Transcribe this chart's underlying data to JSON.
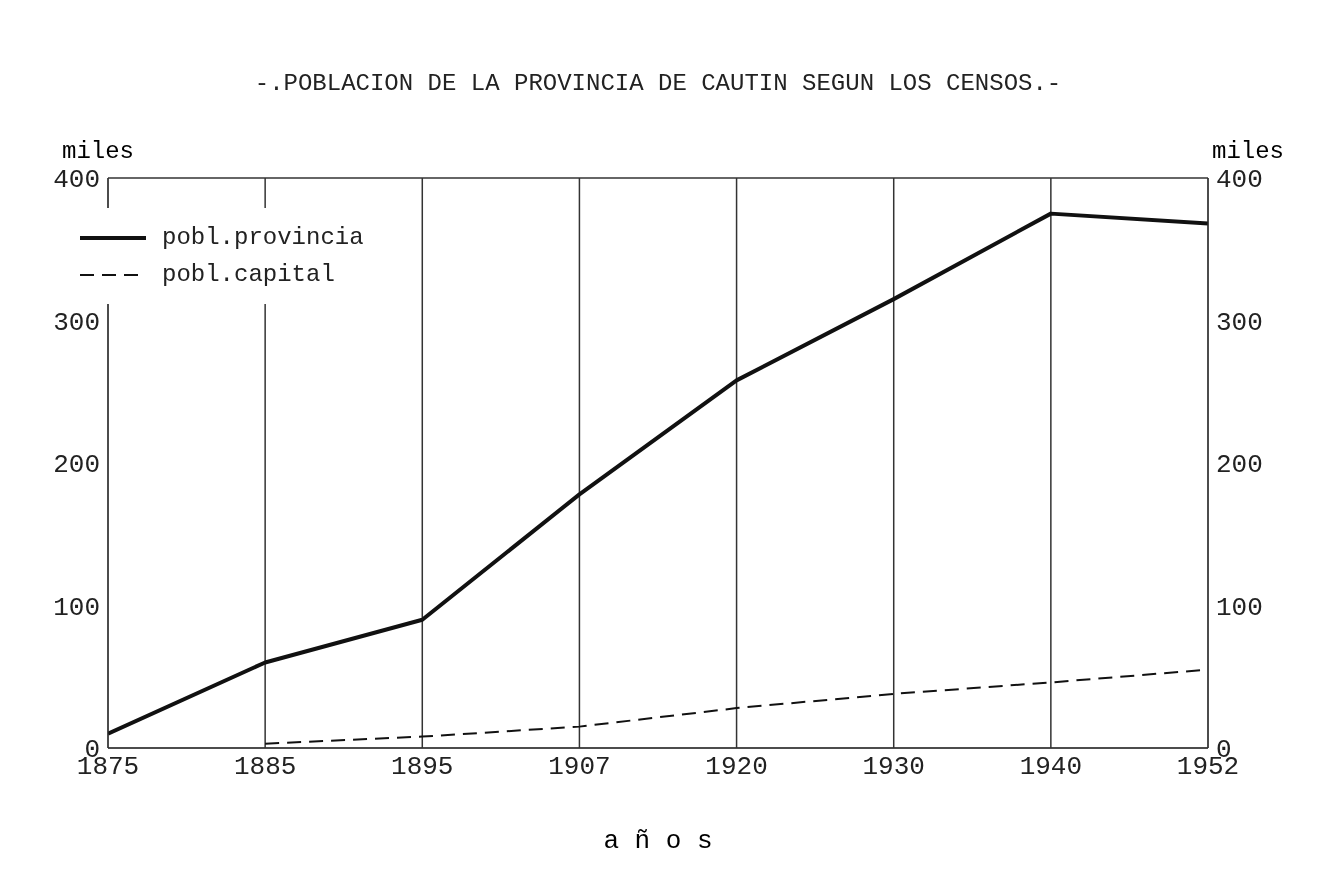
{
  "chart_data": {
    "type": "line",
    "title": "-.POBLACION DE LA PROVINCIA DE CAUTIN SEGUN LOS CENSOS.-",
    "xlabel": "a ñ o s",
    "ylabel": "miles",
    "y2label": "miles",
    "categories": [
      "1875",
      "1885",
      "1895",
      "1907",
      "1920",
      "1930",
      "1940",
      "1952"
    ],
    "series": [
      {
        "name": "pobl.provincia",
        "color": "#111111",
        "line_style": "solid",
        "values": [
          10,
          60,
          90,
          178,
          258,
          315,
          375,
          368
        ]
      },
      {
        "name": "pobl.capital",
        "color": "#111111",
        "line_style": "dashed",
        "values": [
          null,
          3,
          8,
          15,
          28,
          38,
          46,
          55
        ]
      }
    ],
    "ylim": [
      0,
      400
    ],
    "yticks": [
      0,
      100,
      200,
      300,
      400
    ],
    "y2lim": [
      0,
      400
    ],
    "y2ticks": [
      0,
      100,
      200,
      300,
      400
    ],
    "grid": true,
    "legend": "top left",
    "marker": "none"
  }
}
